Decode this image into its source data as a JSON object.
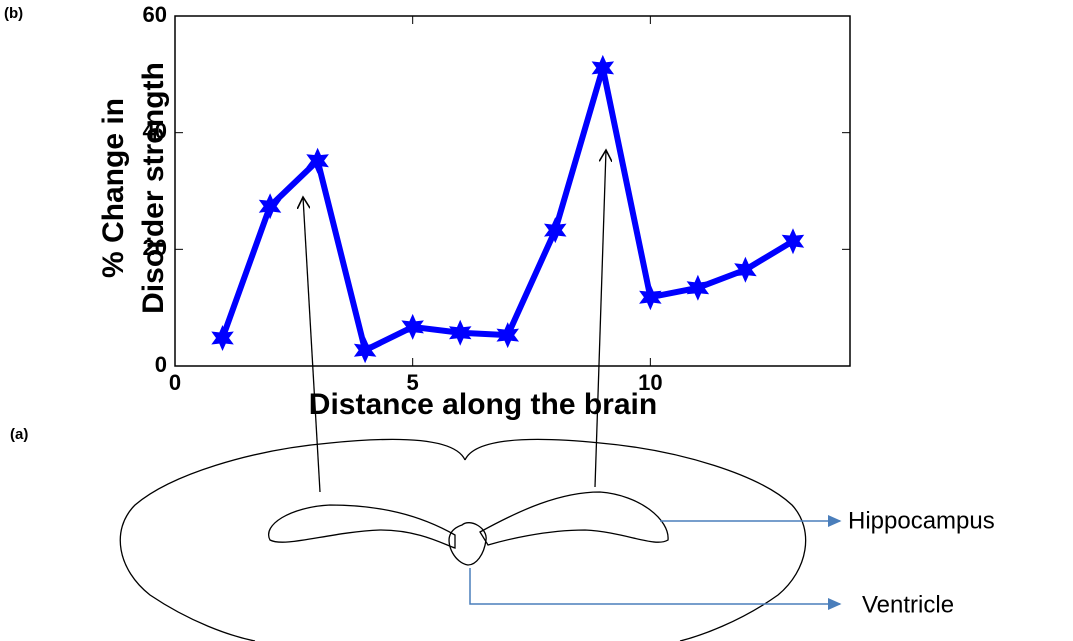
{
  "chart_data": {
    "type": "line",
    "panel_label": "(b)",
    "x_label": "Distance along the brain",
    "y_label": [
      "% Change in",
      "Disorder strength"
    ],
    "x": [
      1,
      2,
      3,
      4,
      5,
      6,
      7,
      8,
      9,
      10,
      11,
      12,
      13
    ],
    "values": [
      4.8,
      27.4,
      35.2,
      2.7,
      6.7,
      5.7,
      5.3,
      23.3,
      51.1,
      11.8,
      13.4,
      16.5,
      21.4
    ],
    "color": "#0000ff",
    "marker": "star",
    "xlim": [
      0,
      14.2
    ],
    "ylim": [
      0,
      60
    ],
    "xticks": [
      0,
      5,
      10
    ],
    "yticks": [
      0,
      20,
      40,
      60
    ]
  },
  "diagram": {
    "panel_label": "(a)",
    "labels": [
      "Hippocampus",
      "Ventricle"
    ]
  }
}
